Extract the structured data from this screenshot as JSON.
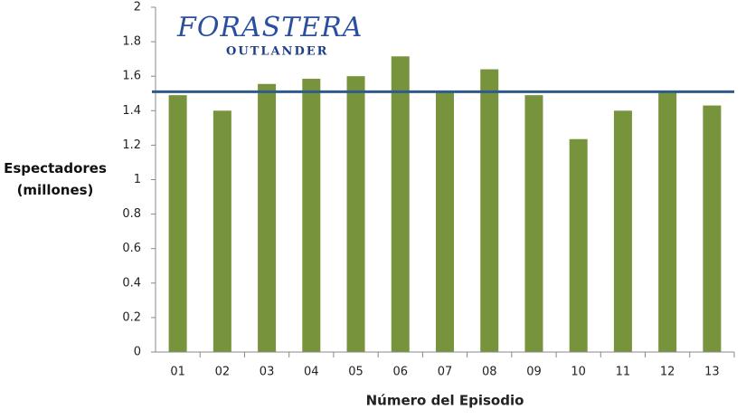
{
  "chart_data": {
    "type": "bar",
    "annotations": [
      "FORASTERA",
      "OUTLANDER"
    ],
    "xlabel": "Número del Episodio",
    "ylabel": "Espectadores (millones)",
    "categories": [
      "01",
      "02",
      "03",
      "04",
      "05",
      "06",
      "07",
      "08",
      "09",
      "10",
      "11",
      "12",
      "13"
    ],
    "values": [
      1.49,
      1.4,
      1.555,
      1.585,
      1.6,
      1.715,
      1.515,
      1.64,
      1.49,
      1.235,
      1.4,
      1.515,
      1.43
    ],
    "color": "#77933c",
    "average": {
      "value": 1.51,
      "color": "#2e5a8c"
    },
    "ylim": [
      0,
      2
    ],
    "yticks": [
      0,
      0.2,
      0.4,
      0.6,
      0.8,
      1,
      1.2,
      1.4,
      1.6,
      1.8,
      2
    ],
    "grid": false
  }
}
